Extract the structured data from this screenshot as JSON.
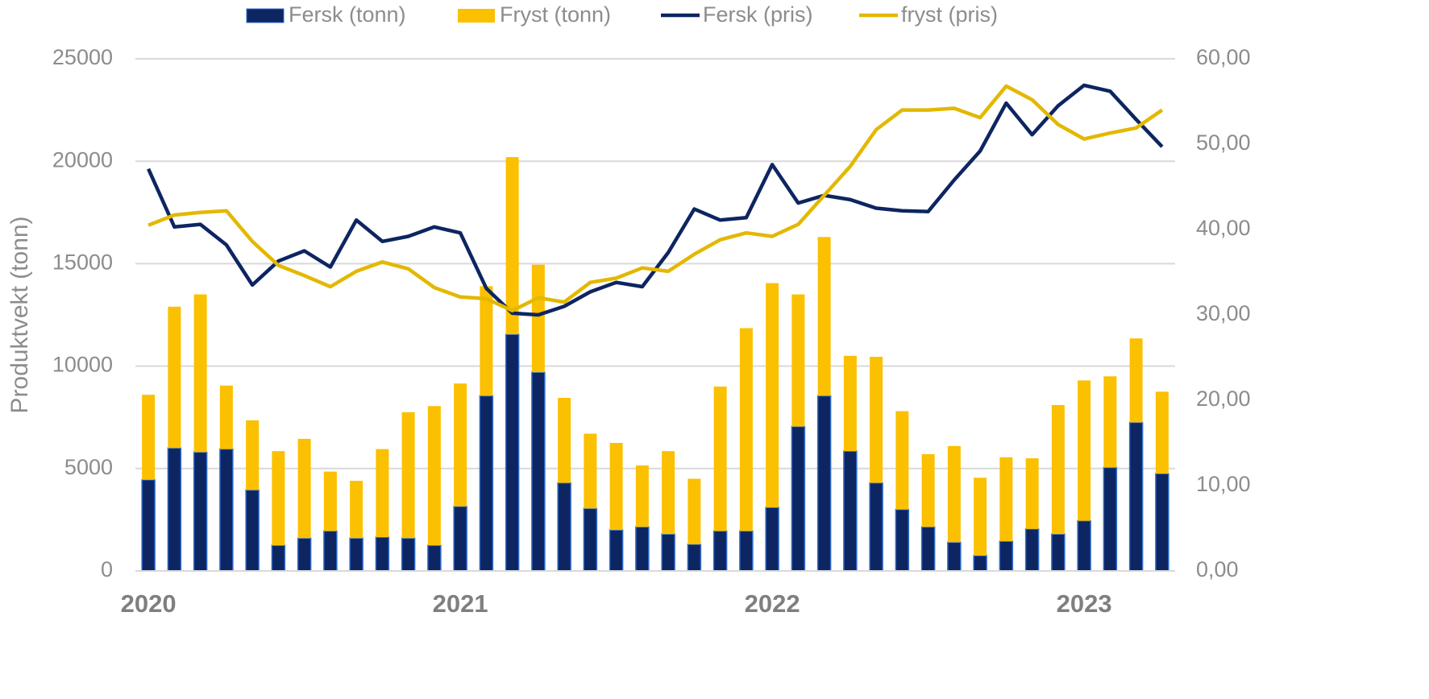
{
  "chart_data": {
    "type": "bar",
    "stacked": true,
    "y_label": "Produktvekt (tonn)",
    "categories": [
      "2020",
      null,
      null,
      null,
      null,
      null,
      null,
      null,
      null,
      null,
      null,
      null,
      "2021",
      null,
      null,
      null,
      null,
      null,
      null,
      null,
      null,
      null,
      null,
      null,
      "2022",
      null,
      null,
      null,
      null,
      null,
      null,
      null,
      null,
      null,
      null,
      null,
      "2023",
      null,
      null,
      null
    ],
    "series": [
      {
        "name": "Fersk (tonn)",
        "type": "bar",
        "color": "#0d2561",
        "values": [
          4450,
          6000,
          5800,
          5950,
          3950,
          1250,
          1600,
          1950,
          1600,
          1650,
          1600,
          1250,
          3150,
          8550,
          11550,
          9700,
          4300,
          3050,
          2000,
          2150,
          1800,
          1300,
          1950,
          1950,
          3100,
          7050,
          8550,
          5850,
          4300,
          3000,
          2150,
          1400,
          750,
          1450,
          2050,
          1800,
          2450,
          5050,
          7250,
          4750
        ]
      },
      {
        "name": "Fryst (tonn)",
        "type": "bar",
        "color": "#fbc000",
        "values": [
          4150,
          6900,
          7700,
          3100,
          3400,
          4600,
          4850,
          2900,
          2800,
          4300,
          6150,
          6800,
          6000,
          5350,
          8650,
          5250,
          4150,
          3650,
          4250,
          3000,
          4050,
          3200,
          7050,
          9900,
          10950,
          6450,
          7750,
          4650,
          6150,
          4800,
          3550,
          4700,
          3800,
          4100,
          3450,
          6300,
          6850,
          4450,
          4100,
          4000
        ]
      },
      {
        "name": "Fersk (pris)",
        "type": "line",
        "axis": "y2",
        "color": "#0d2561",
        "values": [
          47.1,
          40.3,
          40.6,
          38.2,
          33.5,
          36.3,
          37.5,
          35.6,
          41.1,
          38.6,
          39.2,
          40.3,
          39.6,
          33.1,
          30.2,
          30.0,
          31.0,
          32.7,
          33.8,
          33.3,
          37.3,
          42.4,
          41.1,
          41.4,
          47.6,
          43.1,
          44.0,
          43.5,
          42.5,
          42.2,
          42.1,
          45.8,
          49.2,
          54.8,
          51.1,
          54.5,
          56.9,
          56.2,
          52.9,
          49.7
        ]
      },
      {
        "name": "fryst (pris)",
        "type": "line",
        "axis": "y2",
        "color": "#e3b800",
        "values": [
          40.5,
          41.7,
          42.0,
          42.2,
          38.6,
          35.8,
          34.6,
          33.3,
          35.1,
          36.2,
          35.4,
          33.2,
          32.1,
          31.9,
          30.5,
          32.0,
          31.5,
          33.8,
          34.3,
          35.5,
          35.1,
          37.1,
          38.8,
          39.6,
          39.2,
          40.6,
          44.0,
          47.4,
          51.7,
          54.0,
          54.0,
          54.2,
          53.1,
          56.8,
          55.2,
          52.3,
          50.6,
          51.3,
          51.9,
          54.0
        ]
      }
    ],
    "ylim": [
      0,
      25000
    ],
    "yticks": [
      0,
      5000,
      10000,
      15000,
      20000,
      25000
    ],
    "y2lim": [
      0,
      60
    ],
    "y2ticks": [
      {
        "value": 0,
        "label": "0,00"
      },
      {
        "value": 10,
        "label": "10,00"
      },
      {
        "value": 20,
        "label": "20,00"
      },
      {
        "value": 30,
        "label": "30,00"
      },
      {
        "value": 40,
        "label": "40,00"
      },
      {
        "value": 50,
        "label": "50,00"
      },
      {
        "value": 60,
        "label": "60,00"
      }
    ],
    "grid": true,
    "legend": "top"
  }
}
